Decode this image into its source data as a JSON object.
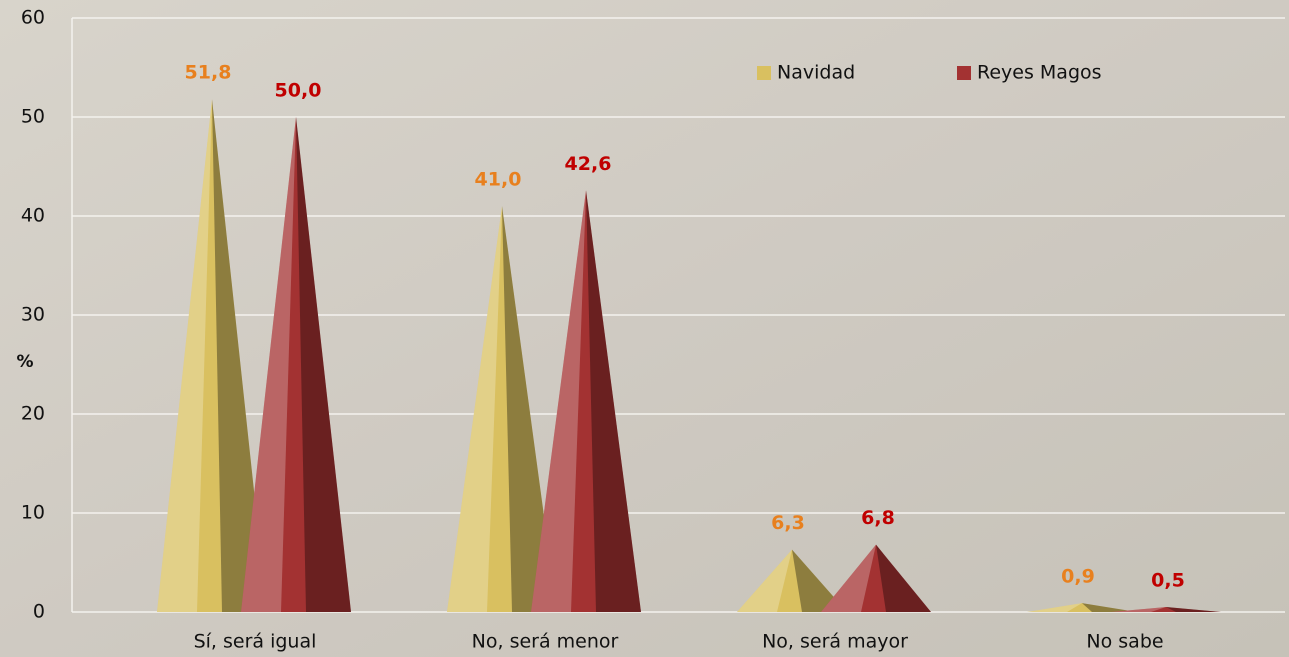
{
  "chart_data": {
    "type": "pyramid",
    "y_label": "%",
    "categories": [
      "Sí, será igual",
      "No, será menor",
      "No, será mayor",
      "No sabe"
    ],
    "series": [
      {
        "name": "Navidad",
        "color": "#d9c060",
        "label_color": "#e8801e",
        "values": [
          51.8,
          41.0,
          6.3,
          0.9
        ],
        "value_labels": [
          "51,8",
          "41,0",
          "6,3",
          "0,9"
        ]
      },
      {
        "name": "Reyes Magos",
        "color": "#a33232",
        "label_color": "#c00000",
        "values": [
          50.0,
          42.6,
          6.8,
          0.5
        ],
        "value_labels": [
          "50,0",
          "42,6",
          "6,8",
          "0,5"
        ]
      }
    ],
    "ylim": [
      0,
      60
    ],
    "yticks": [
      0,
      10,
      20,
      30,
      40,
      50,
      60
    ],
    "grid": true,
    "legend": "top-right"
  }
}
